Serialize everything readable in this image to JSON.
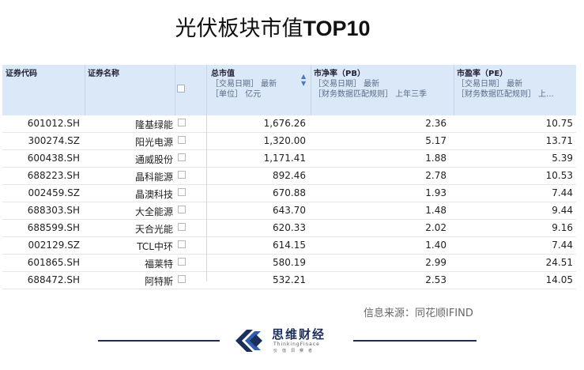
{
  "title": {
    "cn": "光伏板块市值",
    "en": "TOP10"
  },
  "headers": {
    "code": "证券代码",
    "name": "证券名称",
    "mv": {
      "name": "总市值",
      "line1": "［交易日期］ 最新",
      "line2": "［单位］ 亿元"
    },
    "pb": {
      "name": "市净率（PB）",
      "line1": "［交易日期］ 最新",
      "line2": "［财务数据匹配规则］ 上年三季"
    },
    "pe": {
      "name": "市盈率（PE）",
      "line1": "［交易日期］ 最新",
      "line2": "［财务数据匹配规则］ 上..."
    }
  },
  "rows": [
    {
      "code": "601012.SH",
      "name": "隆基绿能",
      "mv": "1,676.26",
      "pb": "2.36",
      "pe": "10.75"
    },
    {
      "code": "300274.SZ",
      "name": "阳光电源",
      "mv": "1,320.00",
      "pb": "5.17",
      "pe": "13.71"
    },
    {
      "code": "600438.SH",
      "name": "通威股份",
      "mv": "1,171.41",
      "pb": "1.88",
      "pe": "5.39"
    },
    {
      "code": "688223.SH",
      "name": "晶科能源",
      "mv": "892.46",
      "pb": "2.78",
      "pe": "10.53"
    },
    {
      "code": "002459.SZ",
      "name": "晶澳科技",
      "mv": "670.88",
      "pb": "1.93",
      "pe": "7.44"
    },
    {
      "code": "688303.SH",
      "name": "大全能源",
      "mv": "643.70",
      "pb": "1.48",
      "pe": "9.44"
    },
    {
      "code": "688599.SH",
      "name": "天合光能",
      "mv": "620.33",
      "pb": "2.02",
      "pe": "9.16"
    },
    {
      "code": "002129.SZ",
      "name": "TCL中环",
      "mv": "614.15",
      "pb": "1.40",
      "pe": "7.44"
    },
    {
      "code": "601865.SH",
      "name": "福莱特",
      "mv": "580.19",
      "pb": "2.99",
      "pe": "24.51"
    },
    {
      "code": "688472.SH",
      "name": "阿特斯",
      "mv": "532.21",
      "pb": "2.53",
      "pe": "14.05"
    }
  ],
  "source": "信息来源：同花顺IFIND",
  "brand": {
    "cn": "思维财经",
    "en": "ThinkingFinace",
    "sub": "价值洞察者"
  },
  "colors": {
    "header_bg": "#dbe8f8",
    "brand": "#1c2f5a",
    "sort_accent": "#4a78c8"
  },
  "icons": {
    "sort": "sort-desc-icon",
    "logo": "brand-logo-icon"
  }
}
